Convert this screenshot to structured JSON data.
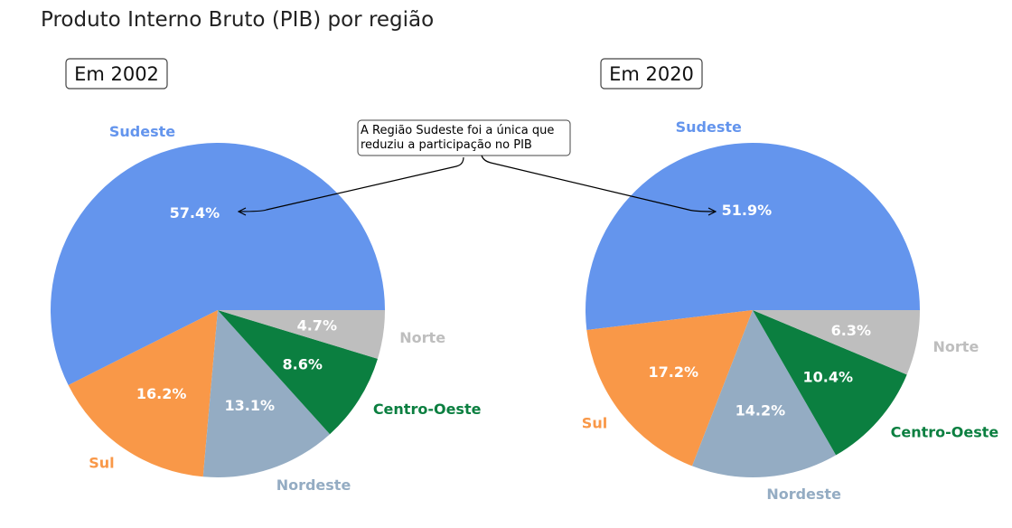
{
  "chart_data": [
    {
      "type": "pie",
      "title": "Produto Interno Bruto (PIB) por região",
      "subtitle": "Em 2002",
      "slices": [
        {
          "name": "Sudeste",
          "value": 57.4,
          "label": "57.4%",
          "color": "#6495ED"
        },
        {
          "name": "Sul",
          "value": 16.2,
          "label": "16.2%",
          "color": "#F99848"
        },
        {
          "name": "Nordeste",
          "value": 13.1,
          "label": "13.1%",
          "color": "#94ACC3"
        },
        {
          "name": "Centro-Oeste",
          "value": 8.6,
          "label": "8.6%",
          "color": "#0B7F40"
        },
        {
          "name": "Norte",
          "value": 4.7,
          "label": "4.7%",
          "color": "#BEBEBE"
        }
      ]
    },
    {
      "type": "pie",
      "subtitle": "Em 2020",
      "slices": [
        {
          "name": "Sudeste",
          "value": 51.9,
          "label": "51.9%",
          "color": "#6495ED"
        },
        {
          "name": "Sul",
          "value": 17.2,
          "label": "17.2%",
          "color": "#F99848"
        },
        {
          "name": "Nordeste",
          "value": 14.2,
          "label": "14.2%",
          "color": "#94ACC3"
        },
        {
          "name": "Centro-Oeste",
          "value": 10.4,
          "label": "10.4%",
          "color": "#0B7F40"
        },
        {
          "name": "Norte",
          "value": 6.3,
          "label": "6.3%",
          "color": "#BEBEBE"
        }
      ]
    }
  ],
  "annotation": {
    "line1": "A Região Sudeste foi a única que",
    "line2": "reduziu a participação no PIB"
  }
}
